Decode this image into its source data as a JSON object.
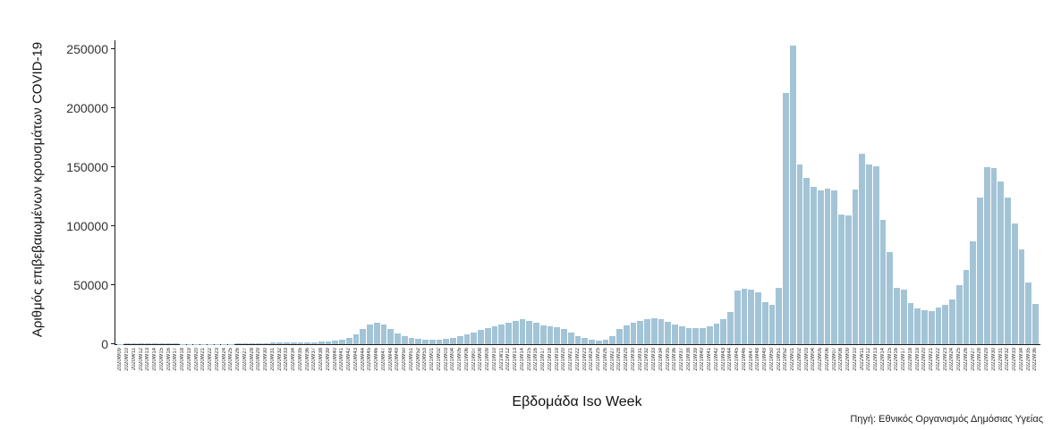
{
  "style": {
    "bar_color": "#a3c4d6",
    "bar_edge_color": "#8fb2c6",
    "axis_color": "#1a1a1a",
    "background_color": "#ffffff",
    "tick_label_color": "#333333"
  },
  "chart_data": {
    "type": "bar",
    "title": "",
    "xlabel": "Εβδομάδα Iso Week",
    "ylabel": "Αριθμός επιβεβαιωμένων κρουσμάτων COVID-19",
    "source": "Πηγή: Εθνικός Οργανισμός Δημόσιας Υγείας",
    "ylim": [
      0,
      250000
    ],
    "yticks": [
      0,
      50000,
      100000,
      150000,
      200000,
      250000
    ],
    "grid": false,
    "legend": "none",
    "categories": [
      "2020W09",
      "2020W10",
      "2020W11",
      "2020W12",
      "2020W13",
      "2020W14",
      "2020W15",
      "2020W16",
      "2020W17",
      "2020W18",
      "2020W19",
      "2020W20",
      "2020W21",
      "2020W22",
      "2020W23",
      "2020W24",
      "2020W25",
      "2020W26",
      "2020W27",
      "2020W28",
      "2020W29",
      "2020W30",
      "2020W31",
      "2020W32",
      "2020W33",
      "2020W34",
      "2020W35",
      "2020W36",
      "2020W37",
      "2020W38",
      "2020W39",
      "2020W40",
      "2020W41",
      "2020W42",
      "2020W43",
      "2020W44",
      "2020W45",
      "2020W46",
      "2020W47",
      "2020W48",
      "2020W49",
      "2020W50",
      "2020W51",
      "2020W52",
      "2020W53",
      "2021W01",
      "2021W02",
      "2021W03",
      "2021W04",
      "2021W05",
      "2021W06",
      "2021W07",
      "2021W08",
      "2021W09",
      "2021W10",
      "2021W11",
      "2021W12",
      "2021W13",
      "2021W14",
      "2021W15",
      "2021W16",
      "2021W17",
      "2021W18",
      "2021W19",
      "2021W20",
      "2021W21",
      "2021W22",
      "2021W23",
      "2021W24",
      "2021W25",
      "2021W26",
      "2021W27",
      "2021W28",
      "2021W29",
      "2021W30",
      "2021W31",
      "2021W32",
      "2021W33",
      "2021W34",
      "2021W35",
      "2021W36",
      "2021W37",
      "2021W38",
      "2021W39",
      "2021W40",
      "2021W41",
      "2021W42",
      "2021W43",
      "2021W44",
      "2021W45",
      "2021W46",
      "2021W47",
      "2021W48",
      "2021W49",
      "2021W50",
      "2021W51",
      "2021W52",
      "2022W01",
      "2022W02",
      "2022W03",
      "2022W04",
      "2022W05",
      "2022W06",
      "2022W07",
      "2022W08",
      "2022W09",
      "2022W10",
      "2022W11",
      "2022W12",
      "2022W13",
      "2022W14",
      "2022W15",
      "2022W16",
      "2022W17",
      "2022W18",
      "2022W19",
      "2022W20",
      "2022W21",
      "2022W22",
      "2022W23",
      "2022W24",
      "2022W25",
      "2022W26",
      "2022W27",
      "2022W28",
      "2022W29",
      "2022W30",
      "2022W31",
      "2022W32",
      "2022W33",
      "2022W34",
      "2022W35",
      "2022W36"
    ],
    "values": [
      100,
      400,
      600,
      700,
      700,
      600,
      400,
      300,
      300,
      200,
      200,
      200,
      200,
      150,
      150,
      200,
      250,
      300,
      400,
      600,
      800,
      1000,
      1300,
      1500,
      1600,
      1700,
      1600,
      1500,
      1800,
      2200,
      2400,
      2800,
      3500,
      5000,
      8000,
      13000,
      17000,
      18000,
      16500,
      13000,
      9000,
      7000,
      5500,
      4500,
      4000,
      3500,
      4000,
      4500,
      5500,
      6500,
      8000,
      10000,
      12000,
      13500,
      15000,
      16500,
      18000,
      19500,
      21000,
      20000,
      18000,
      16000,
      15000,
      14500,
      13000,
      10000,
      7000,
      5000,
      3500,
      3000,
      3500,
      6500,
      13000,
      16000,
      18500,
      20000,
      21500,
      22000,
      21000,
      19000,
      16500,
      15000,
      14000,
      13500,
      14000,
      15500,
      17500,
      21000,
      27500,
      45500,
      47000,
      46500,
      44000,
      35500,
      33000,
      48000,
      213000,
      253000,
      152000,
      141000,
      133000,
      130000,
      132000,
      130000,
      110000,
      109000,
      131000,
      161000,
      152000,
      151000,
      105000,
      78000,
      48000,
      46000,
      35000,
      30000,
      29000,
      28000,
      31000,
      33000,
      38000,
      50000,
      63000,
      87000,
      124000,
      150000,
      149000,
      138000,
      124000,
      102000,
      80000,
      52000,
      34000
    ]
  }
}
